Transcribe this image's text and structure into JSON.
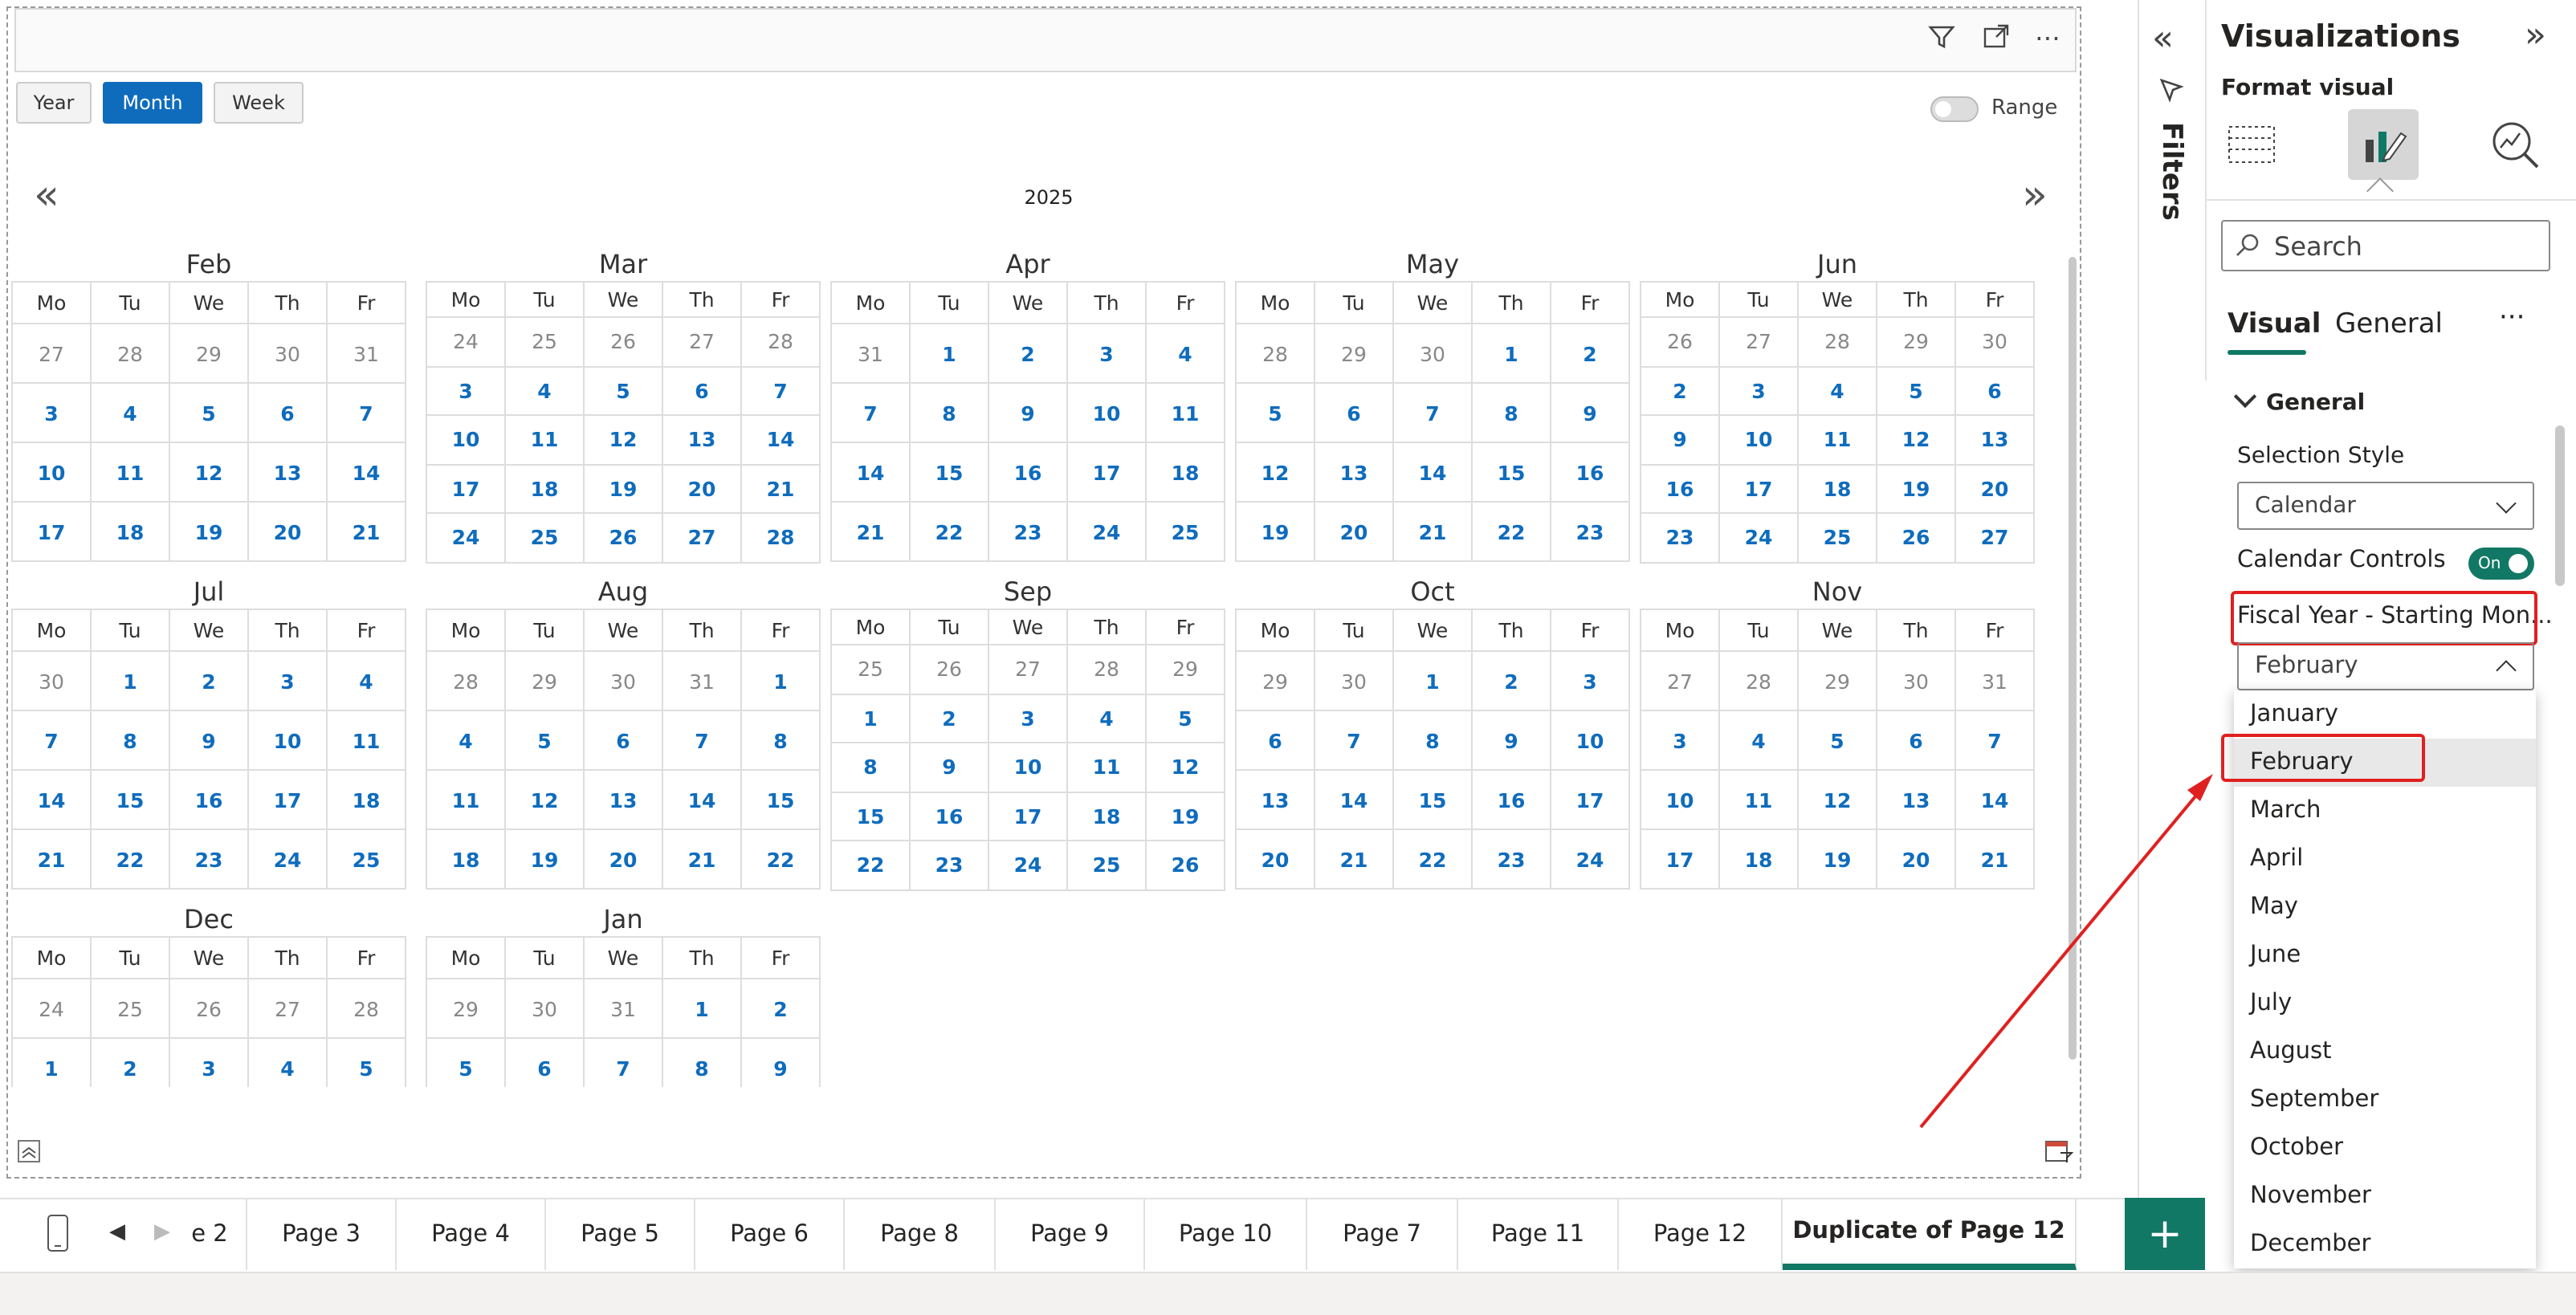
{
  "visual": {
    "modes": [
      "Year",
      "Month",
      "Week"
    ],
    "active_mode": "Month",
    "range_label": "Range",
    "year": "2025",
    "nav_prev": "«",
    "nav_next": "»"
  },
  "weekday_headers": [
    "Mo",
    "Tu",
    "We",
    "Th",
    "Fr"
  ],
  "months": [
    {
      "name": "Feb",
      "rows": [
        [
          "27",
          "28",
          "29",
          "30",
          "31"
        ],
        [
          "3",
          "4",
          "5",
          "6",
          "7"
        ],
        [
          "10",
          "11",
          "12",
          "13",
          "14"
        ],
        [
          "17",
          "18",
          "19",
          "20",
          "21"
        ]
      ],
      "other_row": 0
    },
    {
      "name": "Mar",
      "rows": [
        [
          "24",
          "25",
          "26",
          "27",
          "28"
        ],
        [
          "3",
          "4",
          "5",
          "6",
          "7"
        ],
        [
          "10",
          "11",
          "12",
          "13",
          "14"
        ],
        [
          "17",
          "18",
          "19",
          "20",
          "21"
        ],
        [
          "24",
          "25",
          "26",
          "27",
          "28"
        ]
      ],
      "other_row": 0
    },
    {
      "name": "Apr",
      "rows": [
        [
          "31",
          "1",
          "2",
          "3",
          "4"
        ],
        [
          "7",
          "8",
          "9",
          "10",
          "11"
        ],
        [
          "14",
          "15",
          "16",
          "17",
          "18"
        ],
        [
          "21",
          "22",
          "23",
          "24",
          "25"
        ]
      ],
      "other_row": 0
    },
    {
      "name": "May",
      "rows": [
        [
          "28",
          "29",
          "30",
          "1",
          "2"
        ],
        [
          "5",
          "6",
          "7",
          "8",
          "9"
        ],
        [
          "12",
          "13",
          "14",
          "15",
          "16"
        ],
        [
          "19",
          "20",
          "21",
          "22",
          "23"
        ]
      ],
      "other_row": 0
    },
    {
      "name": "Jun",
      "rows": [
        [
          "26",
          "27",
          "28",
          "29",
          "30"
        ],
        [
          "2",
          "3",
          "4",
          "5",
          "6"
        ],
        [
          "9",
          "10",
          "11",
          "12",
          "13"
        ],
        [
          "16",
          "17",
          "18",
          "19",
          "20"
        ],
        [
          "23",
          "24",
          "25",
          "26",
          "27"
        ]
      ],
      "other_row": 0
    },
    {
      "name": "Jul",
      "rows": [
        [
          "30",
          "1",
          "2",
          "3",
          "4"
        ],
        [
          "7",
          "8",
          "9",
          "10",
          "11"
        ],
        [
          "14",
          "15",
          "16",
          "17",
          "18"
        ],
        [
          "21",
          "22",
          "23",
          "24",
          "25"
        ]
      ],
      "other_row": 0
    },
    {
      "name": "Aug",
      "rows": [
        [
          "28",
          "29",
          "30",
          "31",
          "1"
        ],
        [
          "4",
          "5",
          "6",
          "7",
          "8"
        ],
        [
          "11",
          "12",
          "13",
          "14",
          "15"
        ],
        [
          "18",
          "19",
          "20",
          "21",
          "22"
        ]
      ],
      "other_row": 0
    },
    {
      "name": "Sep",
      "rows": [
        [
          "25",
          "26",
          "27",
          "28",
          "29"
        ],
        [
          "1",
          "2",
          "3",
          "4",
          "5"
        ],
        [
          "8",
          "9",
          "10",
          "11",
          "12"
        ],
        [
          "15",
          "16",
          "17",
          "18",
          "19"
        ],
        [
          "22",
          "23",
          "24",
          "25",
          "26"
        ]
      ],
      "other_row": 0
    },
    {
      "name": "Oct",
      "rows": [
        [
          "29",
          "30",
          "1",
          "2",
          "3"
        ],
        [
          "6",
          "7",
          "8",
          "9",
          "10"
        ],
        [
          "13",
          "14",
          "15",
          "16",
          "17"
        ],
        [
          "20",
          "21",
          "22",
          "23",
          "24"
        ]
      ],
      "other_row": 0
    },
    {
      "name": "Nov",
      "rows": [
        [
          "27",
          "28",
          "29",
          "30",
          "31"
        ],
        [
          "3",
          "4",
          "5",
          "6",
          "7"
        ],
        [
          "10",
          "11",
          "12",
          "13",
          "14"
        ],
        [
          "17",
          "18",
          "19",
          "20",
          "21"
        ]
      ],
      "other_row": 0
    },
    {
      "name": "Dec",
      "rows": [
        [
          "24",
          "25",
          "26",
          "27",
          "28"
        ],
        [
          "1",
          "2",
          "3",
          "4",
          "5"
        ]
      ],
      "other_row": 0
    },
    {
      "name": "Jan",
      "rows": [
        [
          "29",
          "30",
          "31",
          "1",
          "2"
        ],
        [
          "5",
          "6",
          "7",
          "8",
          "9"
        ]
      ],
      "other_row": 0
    }
  ],
  "page_tabs": [
    "e 2",
    "Page 3",
    "Page 4",
    "Page 5",
    "Page 6",
    "Page 8",
    "Page 9",
    "Page 10",
    "Page 7",
    "Page 11",
    "Page 12",
    "Duplicate of Page 12"
  ],
  "active_tab": "Duplicate of Page 12",
  "add_page": "+",
  "filters_label": "Filters",
  "viz_pane": {
    "title": "Visualizations",
    "subtitle": "Format visual",
    "search_placeholder": "Search",
    "tabs": [
      "Visual",
      "General"
    ],
    "more": "···",
    "section": "General",
    "selection_style_label": "Selection Style",
    "selection_style_value": "Calendar",
    "calendar_controls_label": "Calendar Controls",
    "calendar_controls_state": "On",
    "fiscal_label": "Fiscal Year - Starting Mon...",
    "fiscal_value": "February",
    "options": [
      "January",
      "February",
      "March",
      "April",
      "May",
      "June",
      "July",
      "August",
      "September",
      "October",
      "November",
      "December"
    ],
    "selected_option": "February"
  },
  "colors": {
    "accent": "#117865",
    "blue": "#0f6cbd",
    "highlight": "#e02020"
  }
}
